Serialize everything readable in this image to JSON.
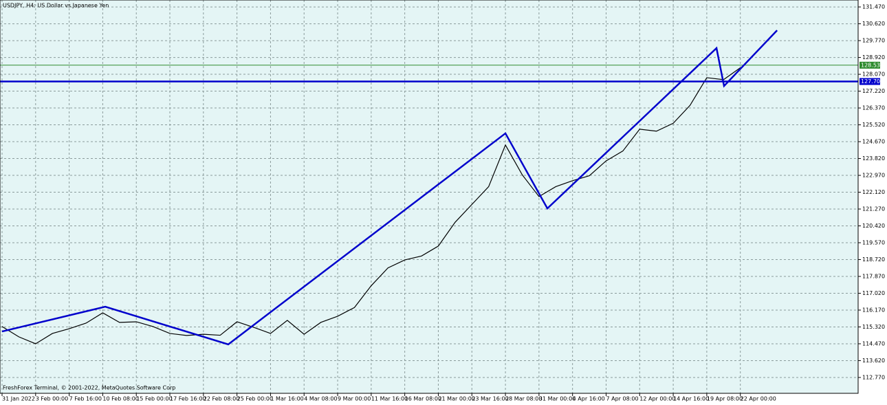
{
  "chart_data": {
    "type": "line",
    "title": "USDJPY, H4:  US Dollar vs Japanese Yen",
    "footer": "FreshForex Terminal, © 2001-2022, MetaQuotes Software Corp",
    "categories": [
      "31 Jan 2022",
      null,
      "3 Feb 00:00",
      null,
      "7 Feb 16:00",
      null,
      "10 Feb 08:00",
      null,
      "15 Feb 00:00",
      null,
      "17 Feb 16:00",
      null,
      "22 Feb 08:00",
      null,
      "25 Feb 00:00",
      null,
      "1 Mar 16:00",
      null,
      "4 Mar 08:00",
      null,
      "9 Mar 00:00",
      null,
      "11 Mar 16:00",
      null,
      "16 Mar 08:00",
      null,
      "21 Mar 00:00",
      null,
      "23 Mar 16:00",
      null,
      "28 Mar 08:00",
      null,
      "31 Mar 00:00",
      null,
      "4 Apr 16:00",
      null,
      "7 Apr 08:00",
      null,
      "12 Apr 00:00",
      null,
      "14 Apr 16:00",
      null,
      "19 Apr 08:00",
      null,
      "22 Apr 00:00"
    ],
    "series": [
      {
        "name": "USDJPY",
        "color": "#000000",
        "values": [
          115.34,
          114.82,
          114.47,
          114.99,
          115.23,
          115.51,
          116.03,
          115.55,
          115.58,
          115.34,
          114.99,
          114.89,
          114.95,
          114.9,
          115.58,
          115.3,
          114.99,
          115.65,
          114.95,
          115.55,
          115.86,
          116.3,
          117.4,
          118.3,
          118.7,
          118.9,
          119.4,
          120.6,
          121.5,
          122.4,
          124.5,
          123.0,
          121.9,
          122.4,
          122.7,
          122.95,
          123.7,
          124.2,
          125.3,
          125.2,
          125.6,
          126.5,
          127.9,
          127.8,
          128.4
        ]
      }
    ],
    "zigzag": {
      "color": "#0000cc",
      "x": [
        0,
        6.15,
        13.48,
        30.0,
        32.5,
        42.58,
        43.03,
        46.19
      ],
      "values": [
        115.09,
        116.34,
        114.44,
        125.09,
        121.3,
        129.39,
        127.48,
        130.29
      ]
    },
    "levels": [
      {
        "value": 128.53,
        "label": "128.530",
        "color": "#2e8b2e"
      },
      {
        "value": 127.707,
        "label": "127.707",
        "color": "#0000cc"
      }
    ],
    "xlim": [
      -0.123,
      51.02
    ],
    "ylim": [
      111.97,
      131.82
    ],
    "yticks": [
      {
        "value": 131.47,
        "label": "131.470"
      },
      {
        "value": 130.62,
        "label": "130.620"
      },
      {
        "value": 129.77,
        "label": "129.770"
      },
      {
        "value": 128.92,
        "label": "128.920"
      },
      {
        "value": 128.07,
        "label": "128.070"
      },
      {
        "value": 127.22,
        "label": "127.220"
      },
      {
        "value": 126.37,
        "label": "126.370"
      },
      {
        "value": 125.52,
        "label": "125.520"
      },
      {
        "value": 124.67,
        "label": "124.670"
      },
      {
        "value": 123.82,
        "label": "123.820"
      },
      {
        "value": 122.97,
        "label": "122.970"
      },
      {
        "value": 122.12,
        "label": "122.120"
      },
      {
        "value": 121.27,
        "label": "121.270"
      },
      {
        "value": 120.42,
        "label": "120.420"
      },
      {
        "value": 119.57,
        "label": "119.570"
      },
      {
        "value": 118.72,
        "label": "118.720"
      },
      {
        "value": 117.87,
        "label": "117.870"
      },
      {
        "value": 117.02,
        "label": "117.020"
      },
      {
        "value": 116.17,
        "label": "116.170"
      },
      {
        "value": 115.32,
        "label": "115.320"
      },
      {
        "value": 114.47,
        "label": "114.470"
      },
      {
        "value": 113.62,
        "label": "113.620"
      },
      {
        "value": 112.77,
        "label": "112.770"
      }
    ],
    "grid": true
  }
}
